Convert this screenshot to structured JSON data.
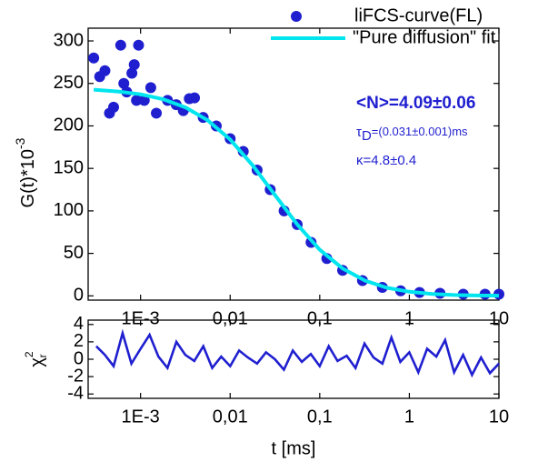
{
  "chart_data": [
    {
      "type": "scatter-line",
      "y_label": "G(t)*10",
      "y_label_exp": "-3",
      "xlim": [
        0.00026,
        10
      ],
      "xlog": true,
      "xticks": [
        {
          "value": 0.001,
          "label": "1E-3"
        },
        {
          "value": 0.01,
          "label": "0,01"
        },
        {
          "value": 0.1,
          "label": "0,1"
        },
        1,
        10
      ],
      "ylim": [
        -5,
        315
      ],
      "yticks": [
        0,
        50,
        100,
        150,
        200,
        250,
        300
      ],
      "legend": "top-right",
      "annotations": [
        "<N>=4.09±0.06",
        "κ=4.8±0.4"
      ],
      "tau_annotation": {
        "symbol": "τ",
        "sub": "D",
        "text": "=(0.031±0.001)ms"
      },
      "series": [
        {
          "name": "liFCS-curve(FL)",
          "type": "scatter",
          "color": "#1f1fd0",
          "x": [
            0.0003,
            0.00035,
            0.0004,
            0.00045,
            0.0005,
            0.0006,
            0.00065,
            0.0007,
            0.0008,
            0.00085,
            0.0009,
            0.00095,
            0.0011,
            0.0013,
            0.0015,
            0.002,
            0.0025,
            0.003,
            0.0035,
            0.004,
            0.005,
            0.007,
            0.01,
            0.014,
            0.02,
            0.028,
            0.04,
            0.056,
            0.08,
            0.12,
            0.18,
            0.3,
            0.5,
            0.8,
            1.3,
            2.2,
            4,
            7,
            10
          ],
          "values": [
            280,
            258,
            265,
            215,
            222,
            295,
            250,
            240,
            262,
            272,
            230,
            295,
            230,
            245,
            215,
            230,
            225,
            218,
            232,
            233,
            210,
            200,
            185,
            170,
            148,
            125,
            100,
            84,
            63,
            44,
            30,
            18,
            10,
            6,
            4,
            3,
            2,
            2,
            2
          ]
        },
        {
          "name": "\"Pure diffusion\" fit",
          "type": "line",
          "color": "#00e5ee",
          "x": [
            0.0003,
            0.00056,
            0.001,
            0.0018,
            0.0032,
            0.0056,
            0.01,
            0.018,
            0.032,
            0.056,
            0.1,
            0.18,
            0.32,
            0.56,
            1,
            1.8,
            3.2,
            5.6,
            10
          ],
          "values": [
            242.6,
            240.5,
            237.2,
            231.3,
            221.6,
            206.7,
            184.0,
            153.1,
            117.9,
            84.1,
            54.3,
            32.2,
            18.0,
            9.6,
            4.8,
            2.2,
            1.0,
            0.5,
            0.2
          ]
        }
      ]
    },
    {
      "type": "line",
      "y_label": "χ",
      "y_label_sup": "2",
      "y_label_sub": "r",
      "x_label": "t [ms]",
      "xlim": [
        0.00026,
        10
      ],
      "xlog": true,
      "xticks": [
        {
          "value": 0.001,
          "label": "1E-3"
        },
        {
          "value": 0.01,
          "label": "0,01"
        },
        {
          "value": 0.1,
          "label": "0,1"
        },
        1,
        10
      ],
      "ylim": [
        -4.5,
        4.5
      ],
      "yticks": [
        -4,
        -2,
        0,
        2,
        4
      ],
      "series": [
        {
          "type": "line",
          "color": "#1f1fd0",
          "x": [
            0.00032,
            0.0004,
            0.0005,
            0.00063,
            0.00079,
            0.001,
            0.00126,
            0.00158,
            0.002,
            0.00251,
            0.00316,
            0.00398,
            0.00501,
            0.00631,
            0.00794,
            0.01,
            0.0126,
            0.0158,
            0.02,
            0.0251,
            0.0316,
            0.0398,
            0.0501,
            0.0631,
            0.0794,
            0.1,
            0.126,
            0.158,
            0.2,
            0.251,
            0.316,
            0.398,
            0.501,
            0.631,
            0.794,
            1,
            1.26,
            1.58,
            2,
            2.51,
            3.16,
            3.98,
            5.01,
            6.31,
            7.94,
            10
          ],
          "values": [
            1.5,
            0.5,
            -0.8,
            3,
            -0.5,
            1.2,
            2.8,
            0.3,
            -1,
            2,
            0.5,
            -0.2,
            1.5,
            -1,
            0.3,
            -0.8,
            1,
            0.2,
            -0.5,
            0.8,
            0,
            -1.2,
            1,
            -0.3,
            0.6,
            -0.8,
            1.5,
            -0.2,
            0.4,
            -1,
            1.8,
            0.2,
            -0.5,
            2.5,
            -0.3,
            0.8,
            -1.5,
            1.2,
            0.3,
            2.2,
            -1.5,
            0.5,
            -1.8,
            0.2,
            -1.6,
            -0.5
          ]
        }
      ]
    }
  ]
}
